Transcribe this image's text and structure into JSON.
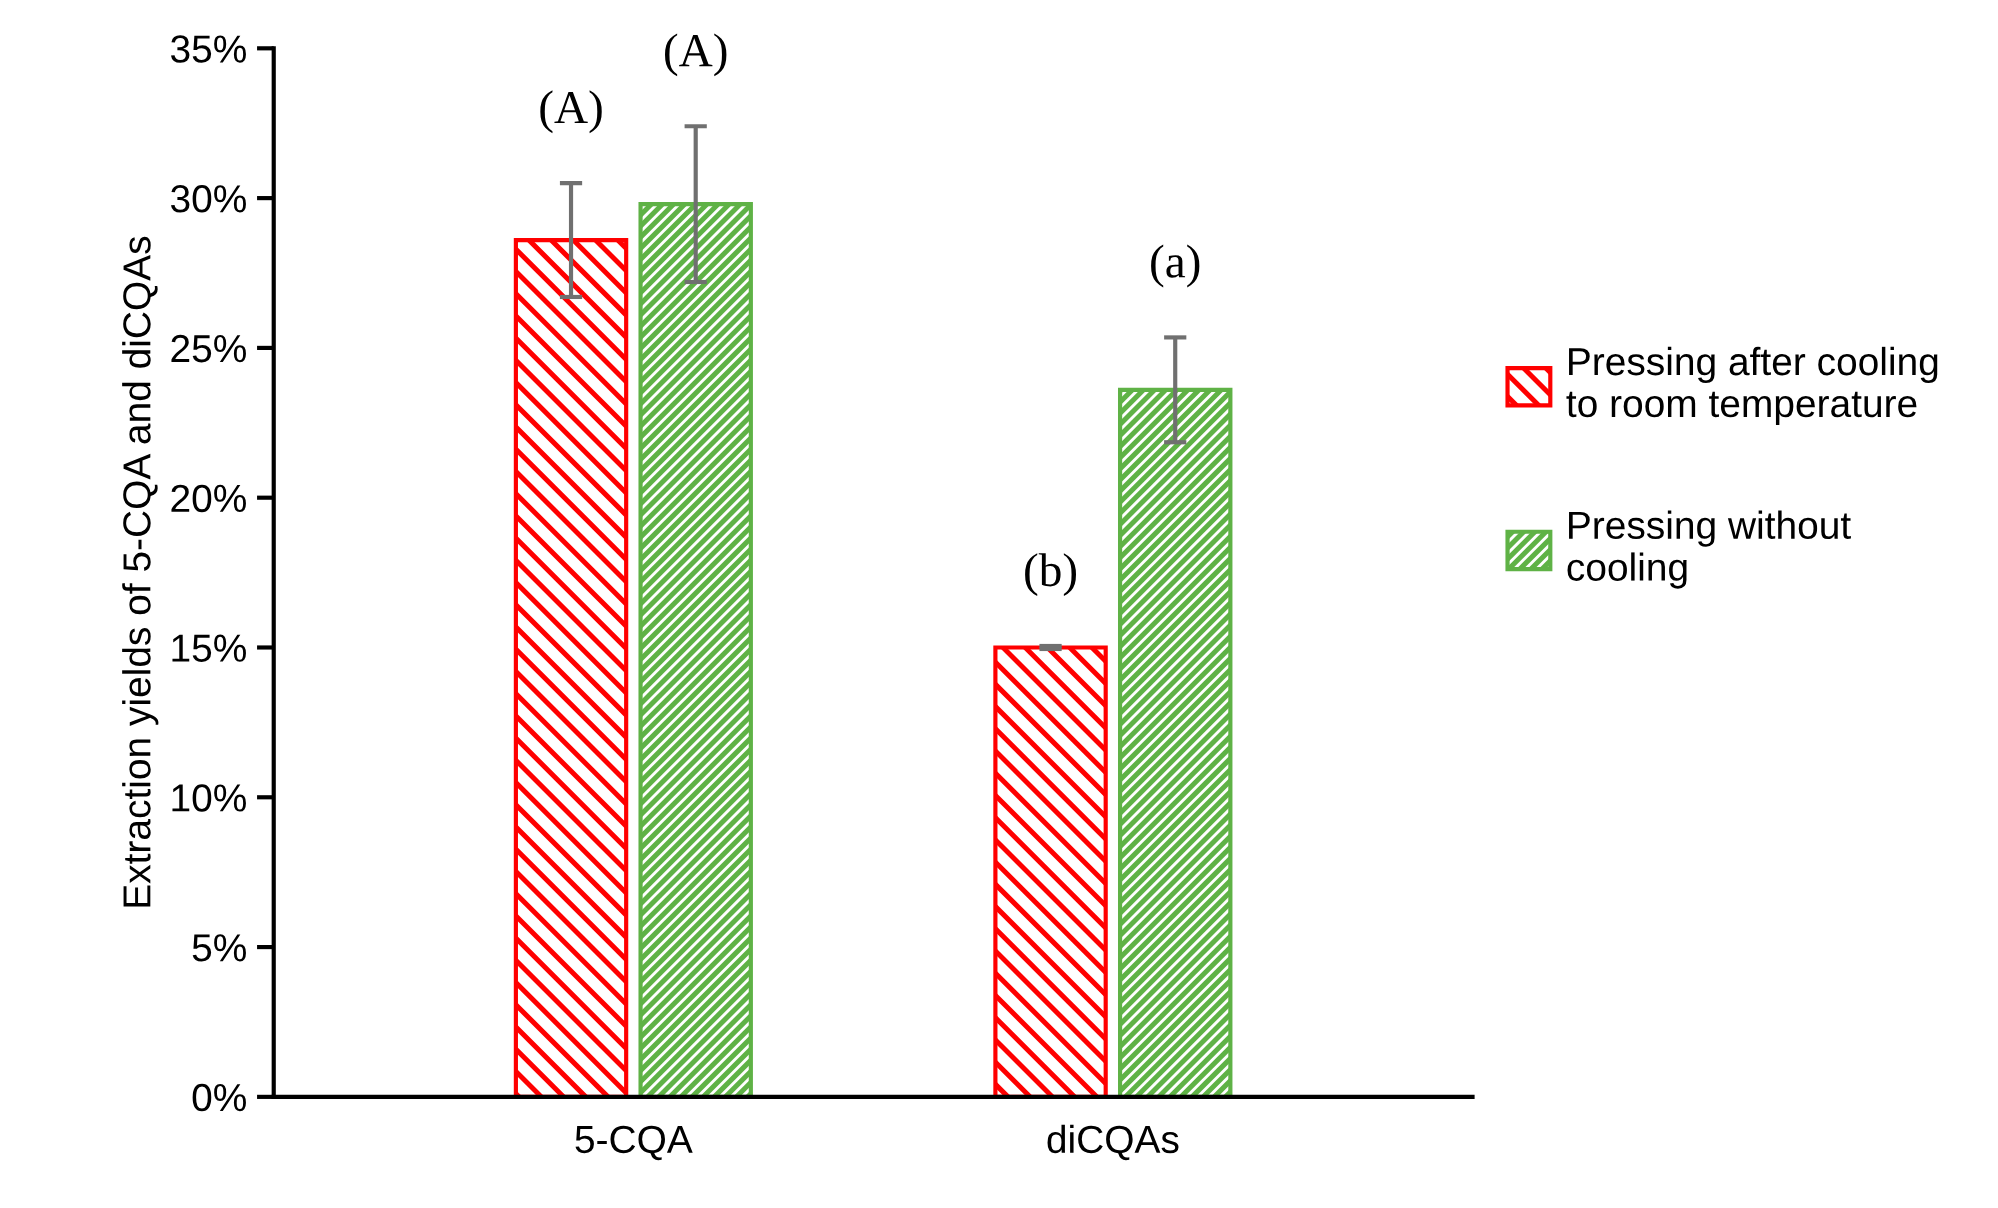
{
  "chart_data": {
    "type": "bar",
    "ylabel": "Extraction yields of 5-CQA and diCQAs",
    "categories": [
      "5-CQA",
      "diCQAs"
    ],
    "series": [
      {
        "name": "Pressing after cooling to room temperature",
        "color": "#ff0000",
        "values": [
          28.6,
          15.0
        ],
        "errors": [
          1.9,
          0.05
        ]
      },
      {
        "name": "Pressing without cooling",
        "color": "#5fb246",
        "values": [
          29.8,
          23.6
        ],
        "errors": [
          2.6,
          1.75
        ]
      }
    ],
    "ylim": [
      0,
      35
    ],
    "yticks": [
      {
        "value": 0,
        "label": "0%"
      },
      {
        "value": 5,
        "label": "5%"
      },
      {
        "value": 10,
        "label": "10%"
      },
      {
        "value": 15,
        "label": "15%"
      },
      {
        "value": 20,
        "label": "20%"
      },
      {
        "value": 25,
        "label": "25%"
      },
      {
        "value": 30,
        "label": "30%"
      },
      {
        "value": 35,
        "label": "35%"
      }
    ],
    "annotations": [
      "(A)",
      "(A)",
      "(b)",
      "(a)"
    ],
    "grid": false,
    "legend": "right"
  }
}
